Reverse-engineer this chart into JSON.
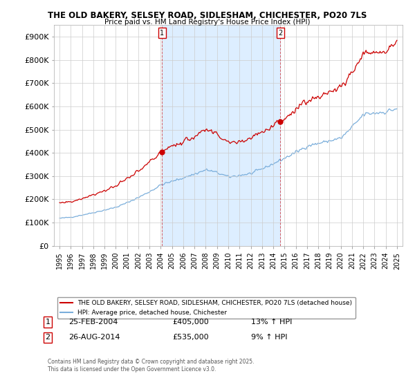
{
  "title1": "THE OLD BAKERY, SELSEY ROAD, SIDLESHAM, CHICHESTER, PO20 7LS",
  "title2": "Price paid vs. HM Land Registry's House Price Index (HPI)",
  "line1_label": "THE OLD BAKERY, SELSEY ROAD, SIDLESHAM, CHICHESTER, PO20 7LS (detached house)",
  "line2_label": "HPI: Average price, detached house, Chichester",
  "sale1_date": "25-FEB-2004",
  "sale1_price": 405000,
  "sale1_hpi": "13% ↑ HPI",
  "sale2_date": "26-AUG-2014",
  "sale2_price": 535000,
  "sale2_hpi": "9% ↑ HPI",
  "copyright": "Contains HM Land Registry data © Crown copyright and database right 2025.\nThis data is licensed under the Open Government Licence v3.0.",
  "line1_color": "#cc0000",
  "line2_color": "#7aaedb",
  "highlight_color": "#ddeeff",
  "bg_color": "#ffffff",
  "grid_color": "#cccccc",
  "ylim_min": 0,
  "ylim_max": 950000,
  "xlim_min": 1994.5,
  "xlim_max": 2025.5
}
